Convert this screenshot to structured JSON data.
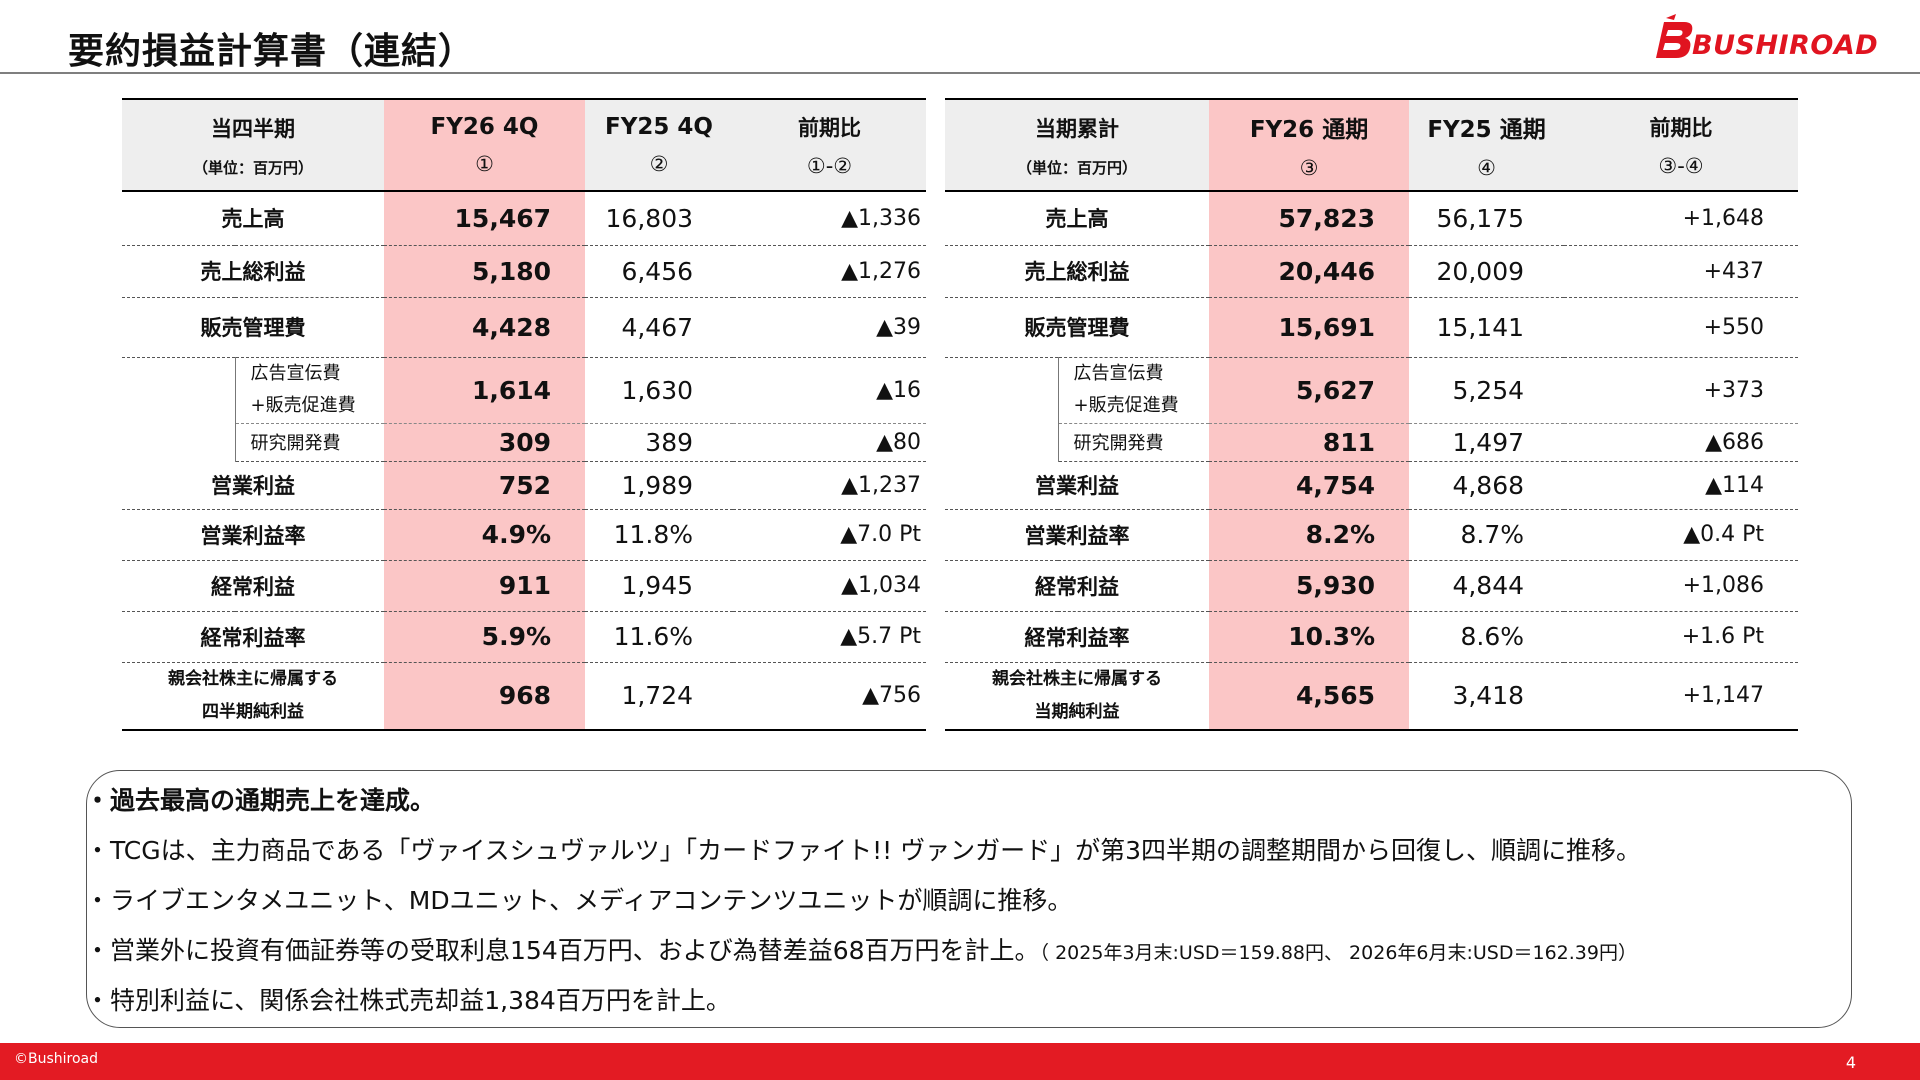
{
  "title": "要約損益計算書（連結）",
  "logo_text": "BUSHIROAD",
  "quarter": {
    "headers": {
      "label": "当四半期",
      "unit": "（単位：百万円）",
      "col1": "FY26 4Q",
      "col1_sub": "①",
      "col2": "FY25 4Q",
      "col2_sub": "②",
      "col3": "前期比",
      "col3_sub": "①-②"
    },
    "rows": {
      "sales": {
        "label": "売上高",
        "v1": "15,467",
        "v2": "16,803",
        "v3": "▲1,336"
      },
      "gross": {
        "label": "売上総利益",
        "v1": "5,180",
        "v2": "6,456",
        "v3": "▲1,276"
      },
      "sga": {
        "label": "販売管理費",
        "v1": "4,428",
        "v2": "4,467",
        "v3": "▲39"
      },
      "ad": {
        "label_line1": "広告宣伝費",
        "label_line2": "+販売促進費",
        "v1": "1,614",
        "v2": "1,630",
        "v3": "▲16"
      },
      "rd": {
        "label": "研究開発費",
        "v1": "309",
        "v2": "389",
        "v3": "▲80"
      },
      "op": {
        "label": "営業利益",
        "v1": "752",
        "v2": "1,989",
        "v3": "▲1,237"
      },
      "opm": {
        "label": "営業利益率",
        "v1": "4.9%",
        "v2": "11.8%",
        "v3": "▲7.0 Pt"
      },
      "ord": {
        "label": "経常利益",
        "v1": "911",
        "v2": "1,945",
        "v3": "▲1,034"
      },
      "ordm": {
        "label": "経常利益率",
        "v1": "5.9%",
        "v2": "11.6%",
        "v3": "▲5.7 Pt"
      },
      "net": {
        "label_line1": "親会社株主に帰属する",
        "label_line2": "四半期純利益",
        "v1": "968",
        "v2": "1,724",
        "v3": "▲756"
      }
    }
  },
  "annual": {
    "headers": {
      "label": "当期累計",
      "unit": "（単位：百万円）",
      "col1": "FY26 通期",
      "col1_sub": "③",
      "col2": "FY25 通期",
      "col2_sub": "④",
      "col3": "前期比",
      "col3_sub": "③-④"
    },
    "rows": {
      "sales": {
        "label": "売上高",
        "v1": "57,823",
        "v2": "56,175",
        "v3": "+1,648"
      },
      "gross": {
        "label": "売上総利益",
        "v1": "20,446",
        "v2": "20,009",
        "v3": "+437"
      },
      "sga": {
        "label": "販売管理費",
        "v1": "15,691",
        "v2": "15,141",
        "v3": "+550"
      },
      "ad": {
        "label_line1": "広告宣伝費",
        "label_line2": "+販売促進費",
        "v1": "5,627",
        "v2": "5,254",
        "v3": "+373"
      },
      "rd": {
        "label": "研究開発費",
        "v1": "811",
        "v2": "1,497",
        "v3": "▲686"
      },
      "op": {
        "label": "営業利益",
        "v1": "4,754",
        "v2": "4,868",
        "v3": "▲114"
      },
      "opm": {
        "label": "営業利益率",
        "v1": "8.2%",
        "v2": "8.7%",
        "v3": "▲0.4 Pt"
      },
      "ord": {
        "label": "経常利益",
        "v1": "5,930",
        "v2": "4,844",
        "v3": "+1,086"
      },
      "ordm": {
        "label": "経常利益率",
        "v1": "10.3%",
        "v2": "8.6%",
        "v3": "+1.6 Pt"
      },
      "net": {
        "label_line1": "親会社株主に帰属する",
        "label_line2": "当期純利益",
        "v1": "4,565",
        "v2": "3,418",
        "v3": "+1,147"
      }
    }
  },
  "notes": {
    "n1": "・過去最高の通期売上を達成。",
    "n2": "・TCGは、主力商品である「ヴァイスシュヴァルツ」「カードファイト!! ヴァンガード」が第3四半期の調整期間から回復し、順調に推移。",
    "n3": "・ライブエンタメユニット、MDユニット、メディアコンテンツユニットが順調に推移。",
    "n4": "・営業外に投資有価証券等の受取利息154百万円、および為替差益68百万円を計上。",
    "n4_small": "（ 2025年3月末:USD＝159.88円、 2026年6月末:USD＝162.39円）",
    "n5": "・特別利益に、関係会社株式売却益1,384百万円を計上。"
  },
  "footer": {
    "copyright": "©Bushiroad",
    "page": "4"
  },
  "colors": {
    "accent": "#e31b23",
    "highlight": "#fbc6c6",
    "header_bg": "#eeeeee"
  }
}
